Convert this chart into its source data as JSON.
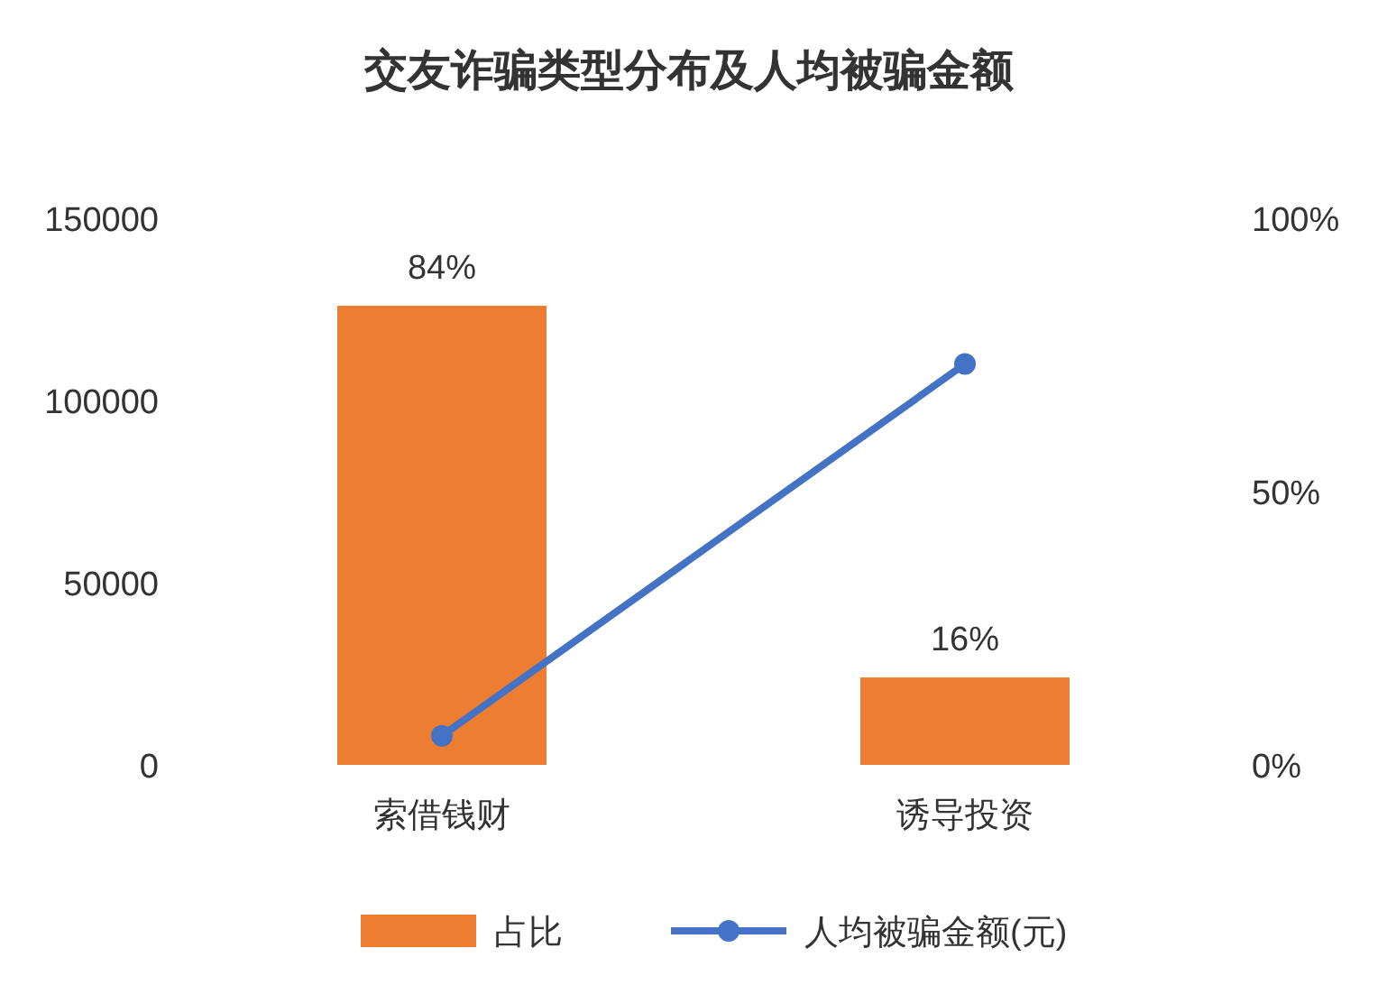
{
  "chart_data": {
    "type": "bar",
    "title": "交友诈骗类型分布及人均被骗金额",
    "categories": [
      "索借钱财",
      "诱导投资"
    ],
    "series": [
      {
        "name": "占比",
        "color": "#ed7d31",
        "axis": "y2",
        "values": [
          84,
          16
        ],
        "value_labels": [
          "84%",
          "16%"
        ]
      },
      {
        "name": "人均被骗金额(元)",
        "type": "line",
        "color": "#4472c4",
        "axis": "y",
        "values": [
          8000,
          110000
        ]
      }
    ],
    "ylim": [
      0,
      150000
    ],
    "yticks": [
      0,
      50000,
      100000,
      150000
    ],
    "y2lim": [
      0,
      100
    ],
    "y2ticks": [
      {
        "value": 0,
        "label": "0%"
      },
      {
        "value": 50,
        "label": "50%"
      },
      {
        "value": 100,
        "label": "100%"
      }
    ],
    "marker": "circle",
    "line_style": "solid",
    "legend": "bottom",
    "grid": false
  }
}
